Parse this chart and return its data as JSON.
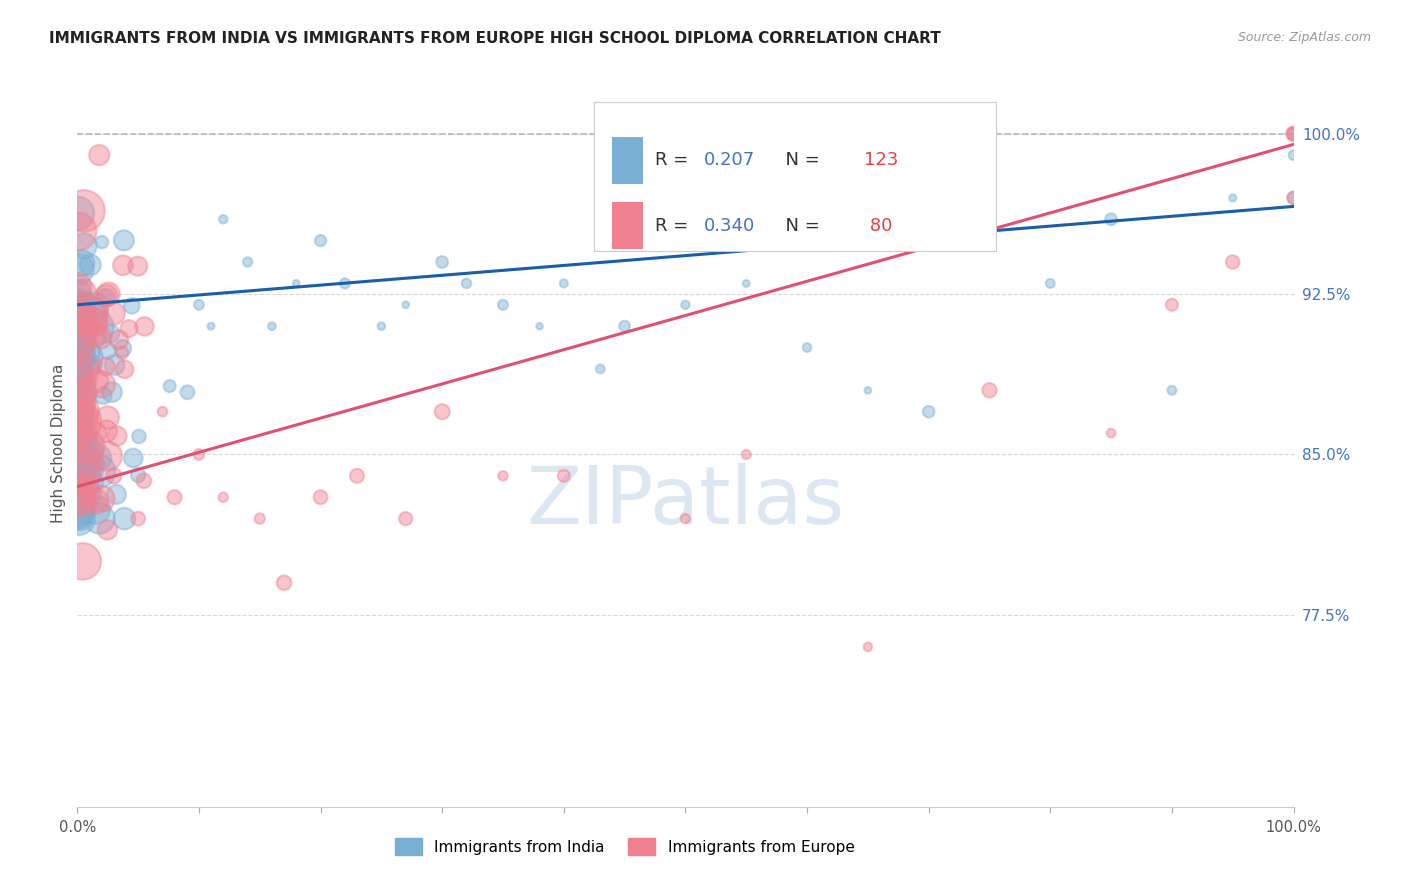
{
  "title": "IMMIGRANTS FROM INDIA VS IMMIGRANTS FROM EUROPE HIGH SCHOOL DIPLOMA CORRELATION CHART",
  "source": "Source: ZipAtlas.com",
  "ylabel": "High School Diploma",
  "ytick_labels": [
    "100.0%",
    "92.5%",
    "85.0%",
    "77.5%"
  ],
  "ytick_values": [
    1.0,
    0.925,
    0.85,
    0.775
  ],
  "xlim": [
    0.0,
    1.0
  ],
  "ylim": [
    0.685,
    1.025
  ],
  "india_R": 0.207,
  "india_N": 123,
  "europe_R": 0.34,
  "europe_N": 80,
  "india_color": "#7aafd4",
  "europe_color": "#f08090",
  "india_line_color": "#1a5fa8",
  "europe_line_color": "#e05070",
  "india_line_y0": 0.92,
  "india_line_y1": 0.966,
  "europe_line_y0": 0.835,
  "europe_line_y1": 0.995,
  "legend_india_label": "Immigrants from India",
  "legend_europe_label": "Immigrants from Europe",
  "grid_color": "#d8d8d8",
  "background_color": "#ffffff",
  "title_color": "#222222",
  "ytick_color": "#4472c4",
  "watermark_color": "#c5d8ea",
  "watermark_text": "ZIPatlas",
  "legend_R_color": "#4472c4",
  "legend_N_color": "#e84040"
}
